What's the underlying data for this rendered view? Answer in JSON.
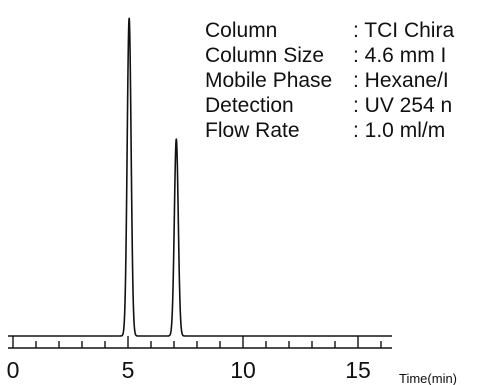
{
  "chart_data": {
    "type": "line",
    "title": "",
    "xlabel": "Time(min)",
    "ylabel": "",
    "xlim": [
      -0.3,
      16.2
    ],
    "ylim": [
      0,
      1.0
    ],
    "x_ticks": [
      0,
      5,
      10,
      15
    ],
    "x_tick_labels": [
      "0",
      "5",
      "10",
      "15"
    ],
    "grid": false,
    "legend": "none",
    "line_color": "#111111",
    "baseline": 0,
    "peaks": [
      {
        "retention_time_min": 5.05,
        "relative_height": 1.0,
        "width_min": 0.2
      },
      {
        "retention_time_min": 7.1,
        "relative_height": 0.62,
        "width_min": 0.2
      }
    ],
    "conditions": [
      {
        "label": "Column",
        "value": ": TCI Chira"
      },
      {
        "label": "Column Size",
        "value": ": 4.6 mm I"
      },
      {
        "label": "Mobile Phase",
        "value": ": Hexane/I"
      },
      {
        "label": "Detection",
        "value": ": UV 254 n"
      },
      {
        "label": "Flow Rate",
        "value": ": 1.0 ml/m"
      }
    ]
  }
}
